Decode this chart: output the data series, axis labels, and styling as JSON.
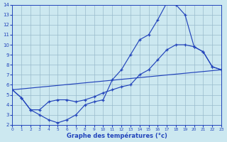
{
  "bg_color": "#cce8f0",
  "line_color": "#2244bb",
  "grid_color": "#99bbcc",
  "xlabel": "Graphe des températures (°c)",
  "xlim": [
    0,
    23
  ],
  "ylim": [
    2,
    14
  ],
  "xtick_vals": [
    0,
    1,
    2,
    3,
    4,
    5,
    6,
    7,
    8,
    9,
    10,
    11,
    12,
    13,
    14,
    15,
    16,
    17,
    18,
    19,
    20,
    21,
    22,
    23
  ],
  "ytick_vals": [
    2,
    3,
    4,
    5,
    6,
    7,
    8,
    9,
    10,
    11,
    12,
    13,
    14
  ],
  "line1_x": [
    0,
    1,
    2,
    3,
    4,
    5,
    6,
    7,
    8,
    9,
    10,
    11,
    12,
    13,
    14,
    15,
    16,
    17,
    18,
    19,
    20,
    21,
    22,
    23
  ],
  "line1_y": [
    5.5,
    4.7,
    3.5,
    3.0,
    2.5,
    2.2,
    2.5,
    3.0,
    4.0,
    4.3,
    4.5,
    6.5,
    7.5,
    9.0,
    10.5,
    11.0,
    12.5,
    14.2,
    14.0,
    13.0,
    9.8,
    9.3,
    7.8,
    7.5
  ],
  "line2_x": [
    0,
    1,
    2,
    3,
    4,
    5,
    6,
    7,
    8,
    9,
    10,
    11,
    12,
    13,
    14,
    15,
    16,
    17,
    18,
    19,
    20,
    21,
    22,
    23
  ],
  "line2_y": [
    5.5,
    4.7,
    3.5,
    3.5,
    4.3,
    4.5,
    4.5,
    4.3,
    4.5,
    4.8,
    5.2,
    5.5,
    5.8,
    6.0,
    7.0,
    7.5,
    8.5,
    9.5,
    10.0,
    10.0,
    9.8,
    9.3,
    7.8,
    7.5
  ],
  "line3_x": [
    0,
    23
  ],
  "line3_y": [
    5.5,
    7.5
  ]
}
